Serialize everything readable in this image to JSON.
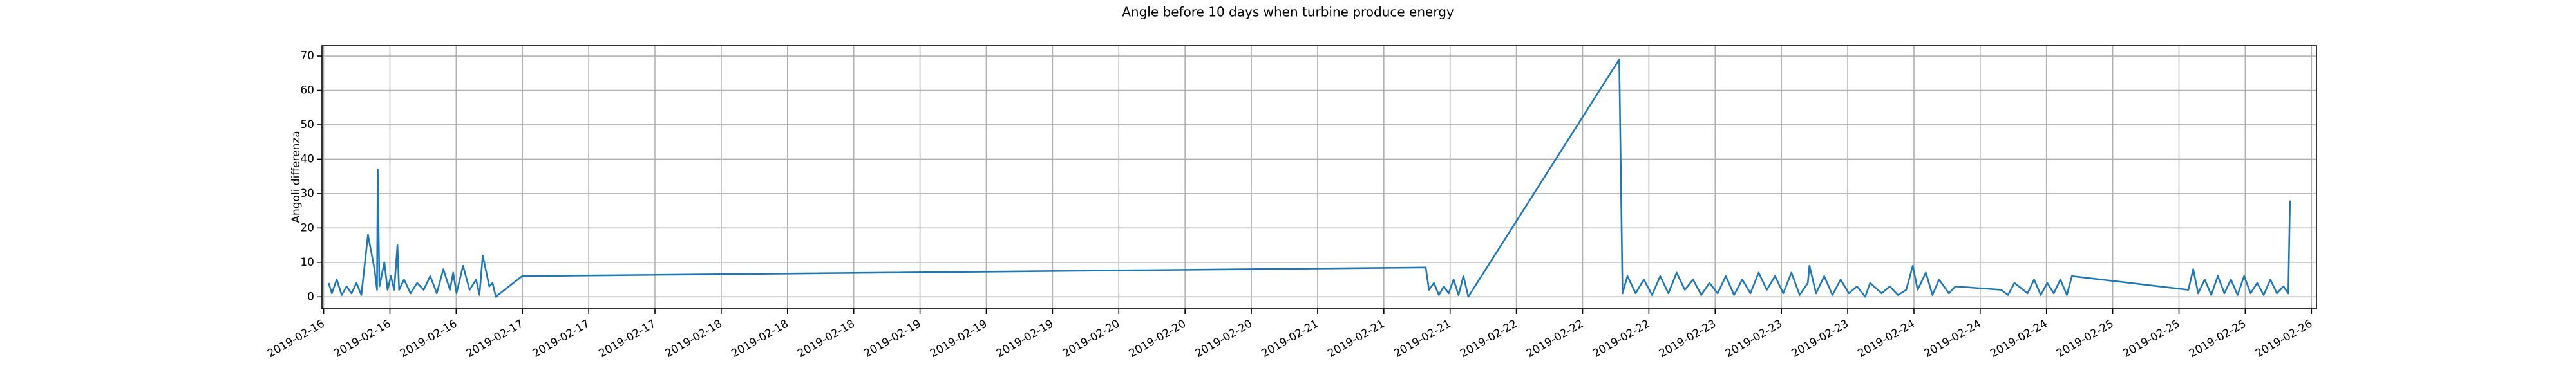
{
  "chart_data": {
    "type": "line",
    "title": "Angle before 10 days when turbine produce energy",
    "ylabel": "Angoli differenza",
    "grid": true,
    "xlim": [
      -0.2,
      240.6
    ],
    "ylim": [
      -3.5,
      73
    ],
    "yticks": [
      0,
      10,
      20,
      30,
      40,
      50,
      60,
      70
    ],
    "xticks": [
      {
        "value": 0,
        "label": "2019-02-16"
      },
      {
        "value": 8,
        "label": "2019-02-16"
      },
      {
        "value": 16,
        "label": "2019-02-16"
      },
      {
        "value": 24,
        "label": "2019-02-17"
      },
      {
        "value": 32,
        "label": "2019-02-17"
      },
      {
        "value": 40,
        "label": "2019-02-17"
      },
      {
        "value": 48,
        "label": "2019-02-18"
      },
      {
        "value": 56,
        "label": "2019-02-18"
      },
      {
        "value": 64,
        "label": "2019-02-18"
      },
      {
        "value": 72,
        "label": "2019-02-19"
      },
      {
        "value": 80,
        "label": "2019-02-19"
      },
      {
        "value": 88,
        "label": "2019-02-19"
      },
      {
        "value": 96,
        "label": "2019-02-20"
      },
      {
        "value": 104,
        "label": "2019-02-20"
      },
      {
        "value": 112,
        "label": "2019-02-20"
      },
      {
        "value": 120,
        "label": "2019-02-21"
      },
      {
        "value": 128,
        "label": "2019-02-21"
      },
      {
        "value": 136,
        "label": "2019-02-21"
      },
      {
        "value": 144,
        "label": "2019-02-22"
      },
      {
        "value": 152,
        "label": "2019-02-22"
      },
      {
        "value": 160,
        "label": "2019-02-22"
      },
      {
        "value": 168,
        "label": "2019-02-23"
      },
      {
        "value": 176,
        "label": "2019-02-23"
      },
      {
        "value": 184,
        "label": "2019-02-23"
      },
      {
        "value": 192,
        "label": "2019-02-24"
      },
      {
        "value": 200,
        "label": "2019-02-24"
      },
      {
        "value": 208,
        "label": "2019-02-24"
      },
      {
        "value": 216,
        "label": "2019-02-25"
      },
      {
        "value": 224,
        "label": "2019-02-25"
      },
      {
        "value": 232,
        "label": "2019-02-25"
      },
      {
        "value": 240,
        "label": "2019-02-26"
      }
    ],
    "x": [
      0.6,
      0.99,
      1.58,
      2.18,
      2.77,
      3.37,
      3.96,
      4.55,
      5.35,
      6.14,
      6.44,
      6.53,
      6.73,
      7.33,
      7.72,
      8.12,
      8.51,
      8.91,
      9.11,
      9.7,
      10.49,
      11.29,
      12.08,
      12.87,
      13.66,
      14.45,
      15.25,
      15.64,
      16.04,
      16.83,
      17.62,
      18.41,
      18.81,
      19.21,
      20,
      20.39,
      20.79,
      23.96,
      133.06,
      133.45,
      134.05,
      134.64,
      135.24,
      135.83,
      136.42,
      137.02,
      137.61,
      138.2,
      156.42,
      156.82,
      157.41,
      158.4,
      159.39,
      160.38,
      161.37,
      162.36,
      163.35,
      164.34,
      165.33,
      166.32,
      167.31,
      168.3,
      169.29,
      170.28,
      171.27,
      172.26,
      173.25,
      174.24,
      175.23,
      176.22,
      177.21,
      178.2,
      179.19,
      179.39,
      180.18,
      181.17,
      182.16,
      183.15,
      184.14,
      185.13,
      186.12,
      186.71,
      188.1,
      189.09,
      190.08,
      191.07,
      191.86,
      192.45,
      193.44,
      194.24,
      195.03,
      196.22,
      197.01,
      202.55,
      203.35,
      204.14,
      205.72,
      206.51,
      207.31,
      208.1,
      208.89,
      209.68,
      210.47,
      211.07,
      225.13,
      225.72,
      226.31,
      227.11,
      227.9,
      228.69,
      229.48,
      230.27,
      231.07,
      231.86,
      232.65,
      233.44,
      234.23,
      235.03,
      235.82,
      236.61,
      237.2,
      237.4
    ],
    "series": [
      {
        "color": "#1f77b4",
        "values": [
          4,
          1,
          5,
          0.5,
          3,
          1,
          4,
          0.5,
          18,
          8,
          2,
          37,
          3,
          10,
          2,
          6,
          2,
          15,
          2,
          5,
          1,
          4,
          2,
          6,
          1,
          8,
          2,
          7,
          1,
          9,
          2,
          5,
          0.5,
          12,
          3,
          4,
          0,
          6,
          8.5,
          2,
          4,
          0.5,
          3,
          1,
          5,
          0.5,
          6,
          0,
          69,
          1,
          6,
          1,
          5,
          0.5,
          6,
          1,
          7,
          2,
          5,
          0.5,
          4,
          1,
          6,
          0.5,
          5,
          1,
          7,
          2,
          6,
          1,
          7,
          0.5,
          4,
          9,
          1,
          6,
          0.5,
          5,
          1,
          3,
          0,
          4,
          1,
          3,
          0.5,
          2,
          9,
          2,
          7,
          0.5,
          5,
          1,
          3,
          2,
          0.5,
          4,
          1,
          5,
          0.5,
          4,
          1,
          5,
          0.5,
          6,
          2,
          8,
          1,
          5,
          0.5,
          6,
          1,
          5,
          0.5,
          6,
          1,
          4,
          0.5,
          5,
          1,
          3,
          1,
          28
        ]
      }
    ]
  }
}
